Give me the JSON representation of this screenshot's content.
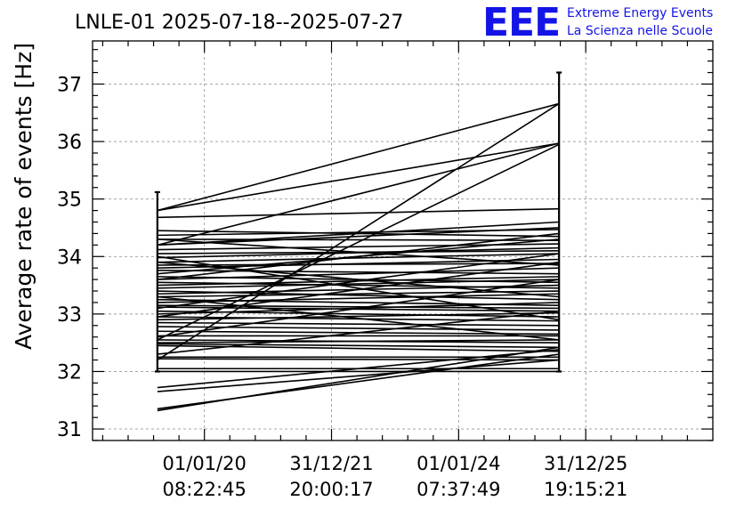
{
  "header": {
    "title": "LNLE-01 2025-07-18--2025-07-27",
    "logo_text": "EEE",
    "logo_line1": "Extreme Energy Events",
    "logo_line2": "La Scienza nelle Scuole",
    "logo_color": "#1414e6"
  },
  "chart_data": {
    "type": "line",
    "title": "LNLE-01 2025-07-18--2025-07-27",
    "xlabel": "",
    "ylabel": "Average rate of events [Hz]",
    "ylim": [
      30.8,
      37.75
    ],
    "xlim": [
      -0.88,
      4.0
    ],
    "grid": true,
    "legend": "none",
    "y_ticks": [
      31,
      32,
      33,
      34,
      35,
      36,
      37
    ],
    "x_ticks": [
      {
        "x": 0,
        "date": "01/01/20",
        "time": "08:22:45"
      },
      {
        "x": 1,
        "date": "31/12/21",
        "time": "20:00:17"
      },
      {
        "x": 2,
        "date": "01/01/24",
        "time": "07:37:49"
      },
      {
        "x": 3,
        "date": "31/12/25",
        "time": "19:15:21"
      }
    ],
    "x_endpoints": [
      -0.37,
      2.79
    ],
    "endpoint_error_bars": [
      {
        "x": -0.37,
        "low": 32.0,
        "high": 35.12
      },
      {
        "x": 2.79,
        "low": 32.0,
        "high": 37.2
      }
    ],
    "segments": [
      [
        34.8,
        36.66
      ],
      [
        32.2,
        36.66
      ],
      [
        34.8,
        35.97
      ],
      [
        32.55,
        35.95
      ],
      [
        34.2,
        35.97
      ],
      [
        34.68,
        34.83
      ],
      [
        34.2,
        34.6
      ],
      [
        34.45,
        34.35
      ],
      [
        34.37,
        34.47
      ],
      [
        34.3,
        34.28
      ],
      [
        34.2,
        34.5
      ],
      [
        34.12,
        34.22
      ],
      [
        34.05,
        34.1
      ],
      [
        33.98,
        34.15
      ],
      [
        33.9,
        34.05
      ],
      [
        33.85,
        33.88
      ],
      [
        33.8,
        33.95
      ],
      [
        33.76,
        33.7
      ],
      [
        33.7,
        34.3
      ],
      [
        33.65,
        33.55
      ],
      [
        33.6,
        33.8
      ],
      [
        33.55,
        33.45
      ],
      [
        33.5,
        33.65
      ],
      [
        33.45,
        33.6
      ],
      [
        33.4,
        33.25
      ],
      [
        33.35,
        33.5
      ],
      [
        33.3,
        33.4
      ],
      [
        33.25,
        33.15
      ],
      [
        33.2,
        33.35
      ],
      [
        33.15,
        33.1
      ],
      [
        33.12,
        33.05
      ],
      [
        33.05,
        32.95
      ],
      [
        33.0,
        33.2
      ],
      [
        32.95,
        32.88
      ],
      [
        32.9,
        33.02
      ],
      [
        32.85,
        32.8
      ],
      [
        32.78,
        32.72
      ],
      [
        32.7,
        32.65
      ],
      [
        32.62,
        32.62
      ],
      [
        32.55,
        32.5
      ],
      [
        32.5,
        32.55
      ],
      [
        32.48,
        32.42
      ],
      [
        32.45,
        32.35
      ],
      [
        32.25,
        32.25
      ],
      [
        32.22,
        32.2
      ],
      [
        32.05,
        32.05
      ],
      [
        32.0,
        32.0
      ],
      [
        31.72,
        32.38
      ],
      [
        31.65,
        32.2
      ],
      [
        31.35,
        32.3
      ],
      [
        31.32,
        32.42
      ],
      [
        33.9,
        33.3
      ],
      [
        33.1,
        34.05
      ],
      [
        32.6,
        33.6
      ],
      [
        34.3,
        33.85
      ],
      [
        33.3,
        32.55
      ],
      [
        32.95,
        33.9
      ],
      [
        34.0,
        32.9
      ],
      [
        33.6,
        34.4
      ],
      [
        32.3,
        33.05
      ]
    ]
  }
}
